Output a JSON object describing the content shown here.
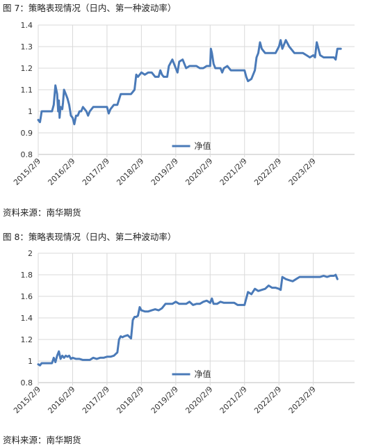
{
  "figures": [
    {
      "caption": "图 7：策略表现情况（日内、第一种波动率）",
      "source": "资料来源：南华期货",
      "chart_data": {
        "type": "line",
        "ylim": [
          0.8,
          1.4
        ],
        "yticks": [
          "0.8",
          "0.9",
          "1",
          "1.1",
          "1.2",
          "1.3",
          "1.4"
        ],
        "xticks": [
          "2015/2/9",
          "2016/2/9",
          "2017/2/9",
          "2018/2/9",
          "2019/2/9",
          "2020/2/9",
          "2021/2/9",
          "2022/2/9",
          "2023/2/9"
        ],
        "grid": "horizontal",
        "legend_position": "bottom-center",
        "line_color": "#4a7ab8",
        "series": [
          {
            "name": "净值",
            "x": [
              0,
              0.05,
              0.08,
              0.1,
              0.15,
              0.2,
              0.3,
              0.4,
              0.45,
              0.5,
              0.55,
              0.58,
              0.6,
              0.62,
              0.65,
              0.7,
              0.72,
              0.75,
              0.8,
              0.85,
              0.9,
              0.95,
              1.0,
              1.05,
              1.1,
              1.15,
              1.2,
              1.25,
              1.3,
              1.35,
              1.4,
              1.45,
              1.5,
              1.6,
              1.7,
              1.8,
              1.9,
              2.0,
              2.05,
              2.1,
              2.2,
              2.3,
              2.4,
              2.5,
              2.6,
              2.7,
              2.8,
              2.85,
              2.9,
              3.0,
              3.1,
              3.2,
              3.3,
              3.4,
              3.5,
              3.55,
              3.6,
              3.65,
              3.7,
              3.75,
              3.8,
              3.9,
              4.0,
              4.05,
              4.1,
              4.2,
              4.3,
              4.4,
              4.5,
              4.6,
              4.7,
              4.8,
              4.9,
              5.0,
              5.02,
              5.05,
              5.1,
              5.15,
              5.2,
              5.3,
              5.35,
              5.4,
              5.5,
              5.6,
              5.7,
              5.8,
              5.9,
              6.0,
              6.05,
              6.1,
              6.2,
              6.3,
              6.35,
              6.4,
              6.45,
              6.5,
              6.55,
              6.6,
              6.7,
              6.8,
              6.9,
              7.0,
              7.05,
              7.1,
              7.2,
              7.3,
              7.4,
              7.45,
              7.5,
              7.6,
              7.7,
              7.8,
              7.9,
              8.0,
              8.05,
              8.1,
              8.2,
              8.3,
              8.4,
              8.5,
              8.6,
              8.65,
              8.7,
              8.8
            ],
            "values": [
              0.96,
              0.95,
              0.98,
              1.0,
              1.0,
              1.0,
              1.0,
              1.0,
              1.03,
              1.12,
              1.08,
              1.0,
              1.05,
              0.97,
              1.02,
              1.01,
              1.04,
              1.1,
              1.08,
              1.06,
              1.03,
              0.98,
              0.97,
              0.94,
              0.98,
              0.98,
              1.0,
              1.0,
              1.02,
              1.01,
              1.0,
              0.98,
              1.0,
              1.02,
              1.02,
              1.02,
              1.02,
              1.02,
              0.99,
              1.01,
              1.03,
              1.03,
              1.08,
              1.08,
              1.08,
              1.08,
              1.1,
              1.17,
              1.16,
              1.18,
              1.17,
              1.18,
              1.18,
              1.16,
              1.16,
              1.19,
              1.17,
              1.16,
              1.16,
              1.16,
              1.21,
              1.24,
              1.2,
              1.18,
              1.23,
              1.24,
              1.2,
              1.21,
              1.21,
              1.21,
              1.2,
              1.2,
              1.21,
              1.21,
              1.29,
              1.27,
              1.22,
              1.2,
              1.2,
              1.2,
              1.18,
              1.2,
              1.21,
              1.19,
              1.19,
              1.19,
              1.19,
              1.19,
              1.16,
              1.14,
              1.15,
              1.19,
              1.25,
              1.27,
              1.32,
              1.29,
              1.28,
              1.27,
              1.27,
              1.27,
              1.27,
              1.3,
              1.33,
              1.29,
              1.33,
              1.3,
              1.28,
              1.27,
              1.27,
              1.27,
              1.27,
              1.26,
              1.25,
              1.26,
              1.25,
              1.32,
              1.26,
              1.25,
              1.25,
              1.25,
              1.25,
              1.24,
              1.29,
              1.29
            ]
          }
        ]
      }
    },
    {
      "caption": "图 8：策略表现情况（日内、第二种波动率）",
      "source": "资料来源：南华期货",
      "chart_data": {
        "type": "line",
        "ylim": [
          0.8,
          2.0
        ],
        "yticks": [
          "0.8",
          "1",
          "1.2",
          "1.4",
          "1.6",
          "1.8",
          "2"
        ],
        "xticks": [
          "2015/2/9",
          "2016/2/9",
          "2017/2/9",
          "2018/2/9",
          "2019/2/9",
          "2020/2/9",
          "2021/2/9",
          "2022/2/9",
          "2023/2/9"
        ],
        "grid": "horizontal",
        "legend_position": "bottom-center",
        "line_color": "#4a7ab8",
        "series": [
          {
            "name": "净值",
            "x": [
              0,
              0.05,
              0.1,
              0.2,
              0.3,
              0.4,
              0.45,
              0.5,
              0.55,
              0.6,
              0.65,
              0.7,
              0.75,
              0.8,
              0.85,
              0.9,
              0.95,
              1.0,
              1.1,
              1.2,
              1.3,
              1.4,
              1.5,
              1.6,
              1.7,
              1.8,
              1.9,
              2.0,
              2.1,
              2.2,
              2.3,
              2.35,
              2.4,
              2.45,
              2.5,
              2.6,
              2.7,
              2.75,
              2.8,
              2.85,
              2.9,
              2.95,
              3.0,
              3.1,
              3.2,
              3.3,
              3.4,
              3.5,
              3.6,
              3.7,
              3.8,
              3.9,
              4.0,
              4.1,
              4.2,
              4.3,
              4.4,
              4.5,
              4.6,
              4.7,
              4.8,
              4.9,
              5.0,
              5.05,
              5.1,
              5.2,
              5.3,
              5.4,
              5.5,
              5.6,
              5.7,
              5.8,
              5.9,
              6.0,
              6.1,
              6.2,
              6.3,
              6.35,
              6.4,
              6.5,
              6.6,
              6.7,
              6.8,
              6.9,
              7.0,
              7.05,
              7.1,
              7.2,
              7.3,
              7.4,
              7.5,
              7.6,
              7.7,
              7.8,
              7.9,
              8.0,
              8.1,
              8.2,
              8.3,
              8.4,
              8.5,
              8.6,
              8.65,
              8.7
            ],
            "values": [
              0.97,
              0.96,
              0.98,
              0.98,
              0.98,
              0.98,
              1.03,
              0.99,
              1.05,
              1.09,
              1.02,
              1.05,
              1.03,
              1.05,
              1.04,
              1.05,
              1.02,
              1.03,
              1.02,
              1.02,
              1.01,
              1.01,
              1.01,
              1.03,
              1.02,
              1.03,
              1.03,
              1.04,
              1.04,
              1.05,
              1.08,
              1.2,
              1.23,
              1.22,
              1.23,
              1.24,
              1.21,
              1.38,
              1.41,
              1.41,
              1.42,
              1.5,
              1.47,
              1.46,
              1.46,
              1.47,
              1.48,
              1.47,
              1.49,
              1.53,
              1.53,
              1.53,
              1.55,
              1.53,
              1.53,
              1.53,
              1.55,
              1.52,
              1.53,
              1.53,
              1.55,
              1.56,
              1.54,
              1.58,
              1.53,
              1.53,
              1.55,
              1.54,
              1.54,
              1.54,
              1.54,
              1.52,
              1.52,
              1.52,
              1.64,
              1.62,
              1.67,
              1.66,
              1.65,
              1.66,
              1.67,
              1.7,
              1.68,
              1.68,
              1.67,
              1.66,
              1.78,
              1.76,
              1.75,
              1.74,
              1.76,
              1.78,
              1.78,
              1.78,
              1.78,
              1.78,
              1.78,
              1.78,
              1.79,
              1.78,
              1.79,
              1.79,
              1.8,
              1.76
            ]
          }
        ]
      }
    }
  ]
}
